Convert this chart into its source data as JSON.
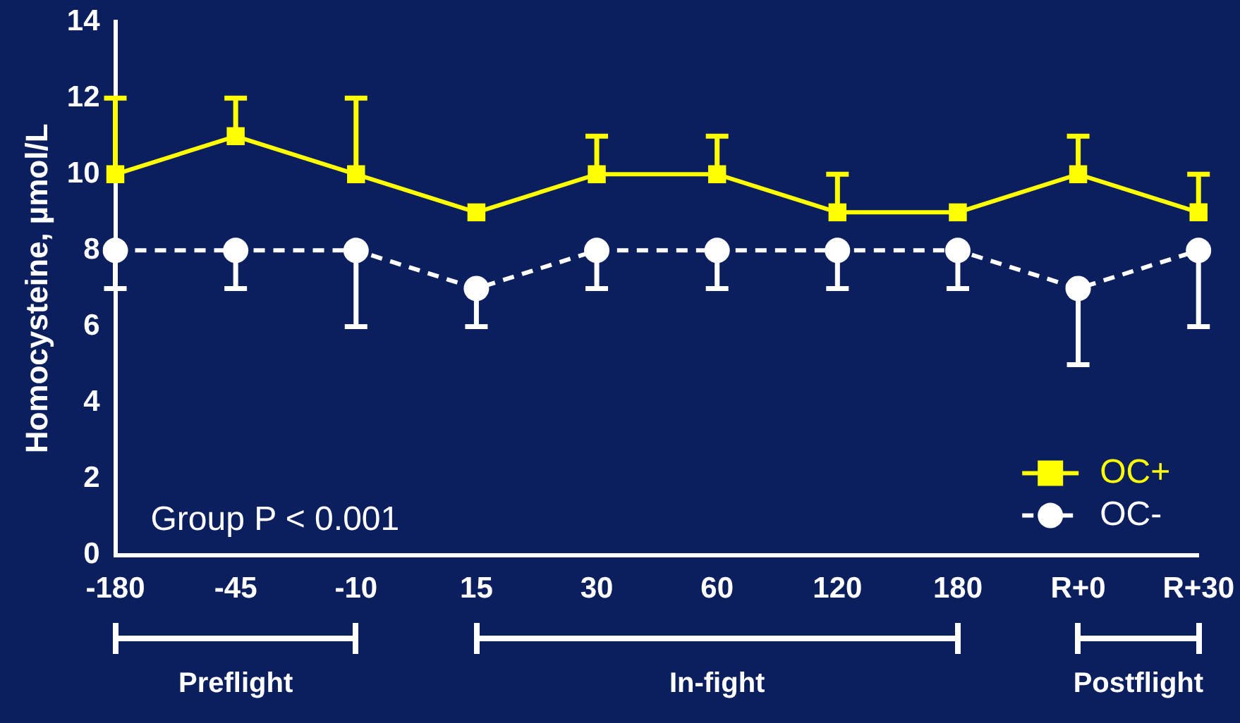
{
  "chart_data": {
    "type": "line",
    "ylabel": "Homocysteine, µmol/L",
    "categories": [
      "-180",
      "-45",
      "-10",
      "15",
      "30",
      "60",
      "120",
      "180",
      "R+0",
      "R+30"
    ],
    "series": [
      {
        "name": "OC+",
        "color": "#ffff00",
        "marker": "square",
        "line_style": "solid",
        "values": [
          10,
          11,
          10,
          9,
          10,
          10,
          9,
          9,
          10,
          9
        ],
        "errors": [
          [
            10,
            12
          ],
          [
            11,
            12
          ],
          [
            10,
            12
          ],
          null,
          [
            10,
            11
          ],
          [
            10,
            11
          ],
          [
            9,
            10
          ],
          null,
          [
            10,
            11
          ],
          [
            9,
            10
          ]
        ]
      },
      {
        "name": "OC-",
        "color": "#ffffff",
        "marker": "circle",
        "line_style": "dashed",
        "values": [
          8,
          8,
          8,
          7,
          8,
          8,
          8,
          8,
          7,
          8
        ],
        "errors": [
          [
            7,
            8
          ],
          [
            7,
            8
          ],
          [
            6,
            8
          ],
          [
            6,
            7
          ],
          [
            7,
            8
          ],
          [
            7,
            8
          ],
          [
            7,
            8
          ],
          [
            7,
            8
          ],
          [
            5,
            7
          ],
          [
            6,
            8
          ]
        ]
      }
    ],
    "ylim": [
      0,
      14
    ],
    "yticks": [
      0,
      2,
      4,
      6,
      8,
      10,
      12,
      14
    ],
    "grid": false,
    "legend": "bottom right",
    "annotations": [
      "Group P < 0.001",
      "Preflight",
      "In-fight",
      "Postflight"
    ]
  }
}
